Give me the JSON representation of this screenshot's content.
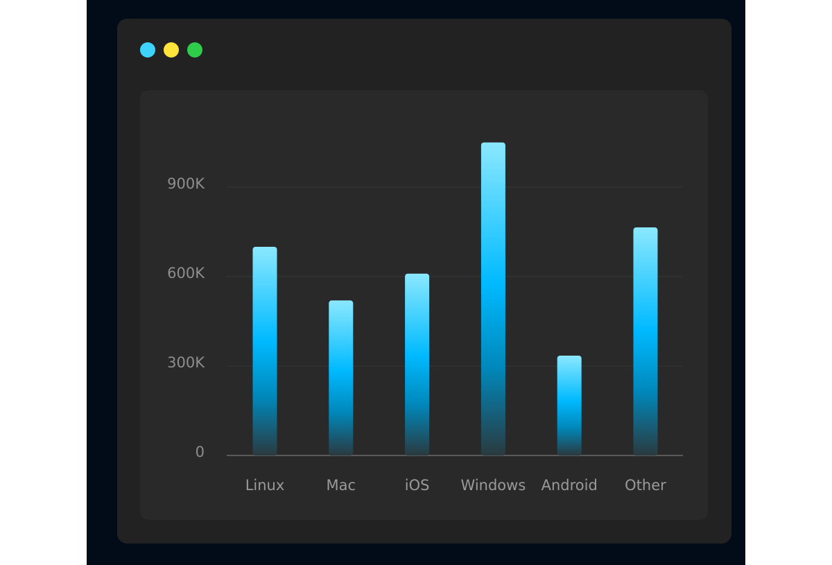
{
  "window": {
    "controls": [
      {
        "name": "close",
        "color": "#3ed3ff"
      },
      {
        "name": "minimize",
        "color": "#ffe53b"
      },
      {
        "name": "maximize",
        "color": "#2ecc4a"
      }
    ]
  },
  "chart_data": {
    "type": "bar",
    "categories": [
      "Linux",
      "Mac",
      "iOS",
      "Windows",
      "Android",
      "Other"
    ],
    "values": [
      700000,
      520000,
      610000,
      1050000,
      335000,
      765000
    ],
    "ylim": [
      0,
      900000
    ],
    "yticks": [
      0,
      300000,
      600000,
      900000
    ],
    "ytick_labels": [
      "0",
      "300K",
      "600K",
      "900K"
    ],
    "title": "",
    "xlabel": "",
    "ylabel": "",
    "grid": true,
    "colors": {
      "bar_top": "#8be8ff",
      "bar_mid": "#00baff",
      "bar_bottom": "#2a3a3f",
      "grid": "#363636",
      "axis": "#5a5a5a"
    }
  }
}
